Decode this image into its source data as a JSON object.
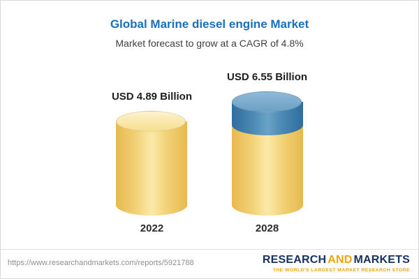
{
  "page": {
    "title": "Global Marine diesel engine Market",
    "subtitle": "Market forecast to grow at a CAGR of 4.8%"
  },
  "chart_data": {
    "type": "bar",
    "title": "Global Marine diesel engine Market",
    "subtitle": "Market forecast to grow at a CAGR of 4.8%",
    "cagr": "4.8%",
    "unit": "USD Billion",
    "categories": [
      "2022",
      "2028"
    ],
    "values": [
      4.89,
      6.55
    ],
    "value_labels": [
      "USD 4.89 Billion",
      "USD 6.55 Billion"
    ],
    "legend_position": "none",
    "grid": false,
    "colors": {
      "base_cylinder": "#f2d176",
      "growth_segment": "#4c89b4",
      "title_blue": "#1a6fbf"
    }
  },
  "footer": {
    "url": "https://www.researchandmarkets.com/reports/5921788",
    "logo": {
      "research": "RESEARCH",
      "and": "AND",
      "markets": "MARKETS",
      "tagline": "THE WORLD'S LARGEST MARKET RESEARCH STORE"
    }
  }
}
